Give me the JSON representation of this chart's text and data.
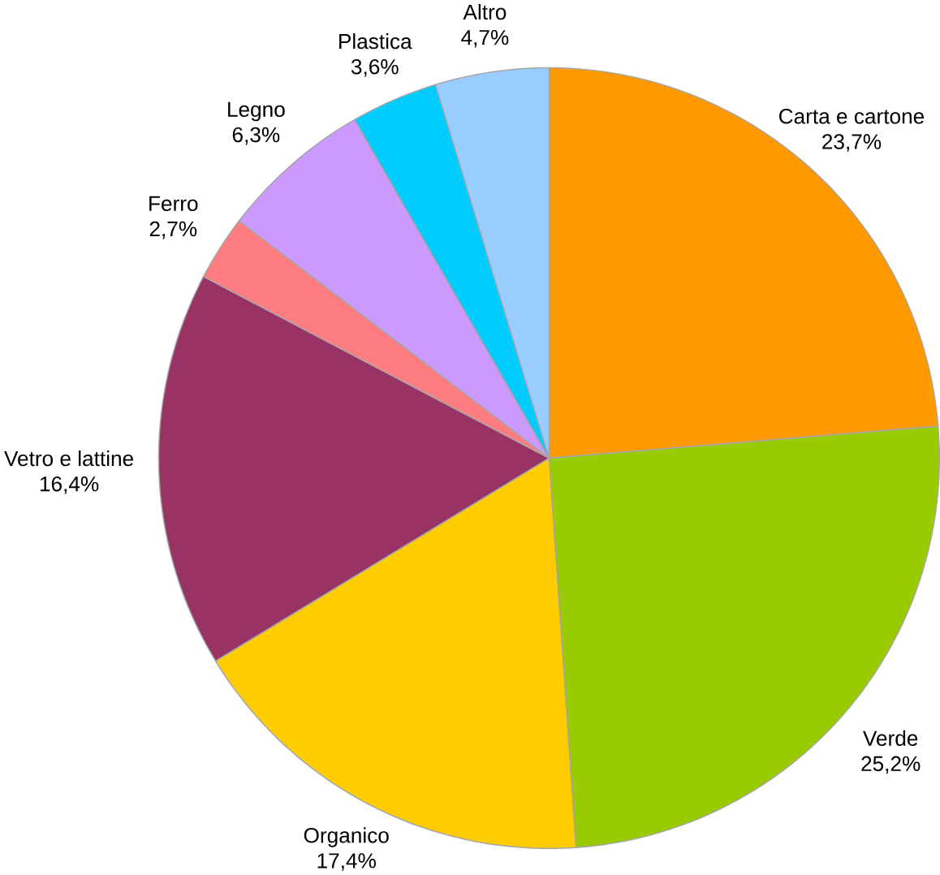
{
  "chart_data": {
    "type": "pie",
    "categories": [
      "Carta e cartone",
      "Verde",
      "Organico",
      "Vetro e lattine",
      "Ferro",
      "Legno",
      "Plastica",
      "Altro"
    ],
    "values": [
      23.7,
      25.2,
      17.4,
      16.4,
      2.7,
      6.3,
      3.6,
      4.7
    ],
    "colors": [
      "#ff9900",
      "#99cc00",
      "#ffcc00",
      "#993366",
      "#ff7c80",
      "#cc99ff",
      "#00ccff",
      "#99ccff"
    ],
    "value_labels": [
      "23,7%",
      "25,2%",
      "17,4%",
      "16,4%",
      "2,7%",
      "6,3%",
      "3,6%",
      "4,7%"
    ]
  }
}
